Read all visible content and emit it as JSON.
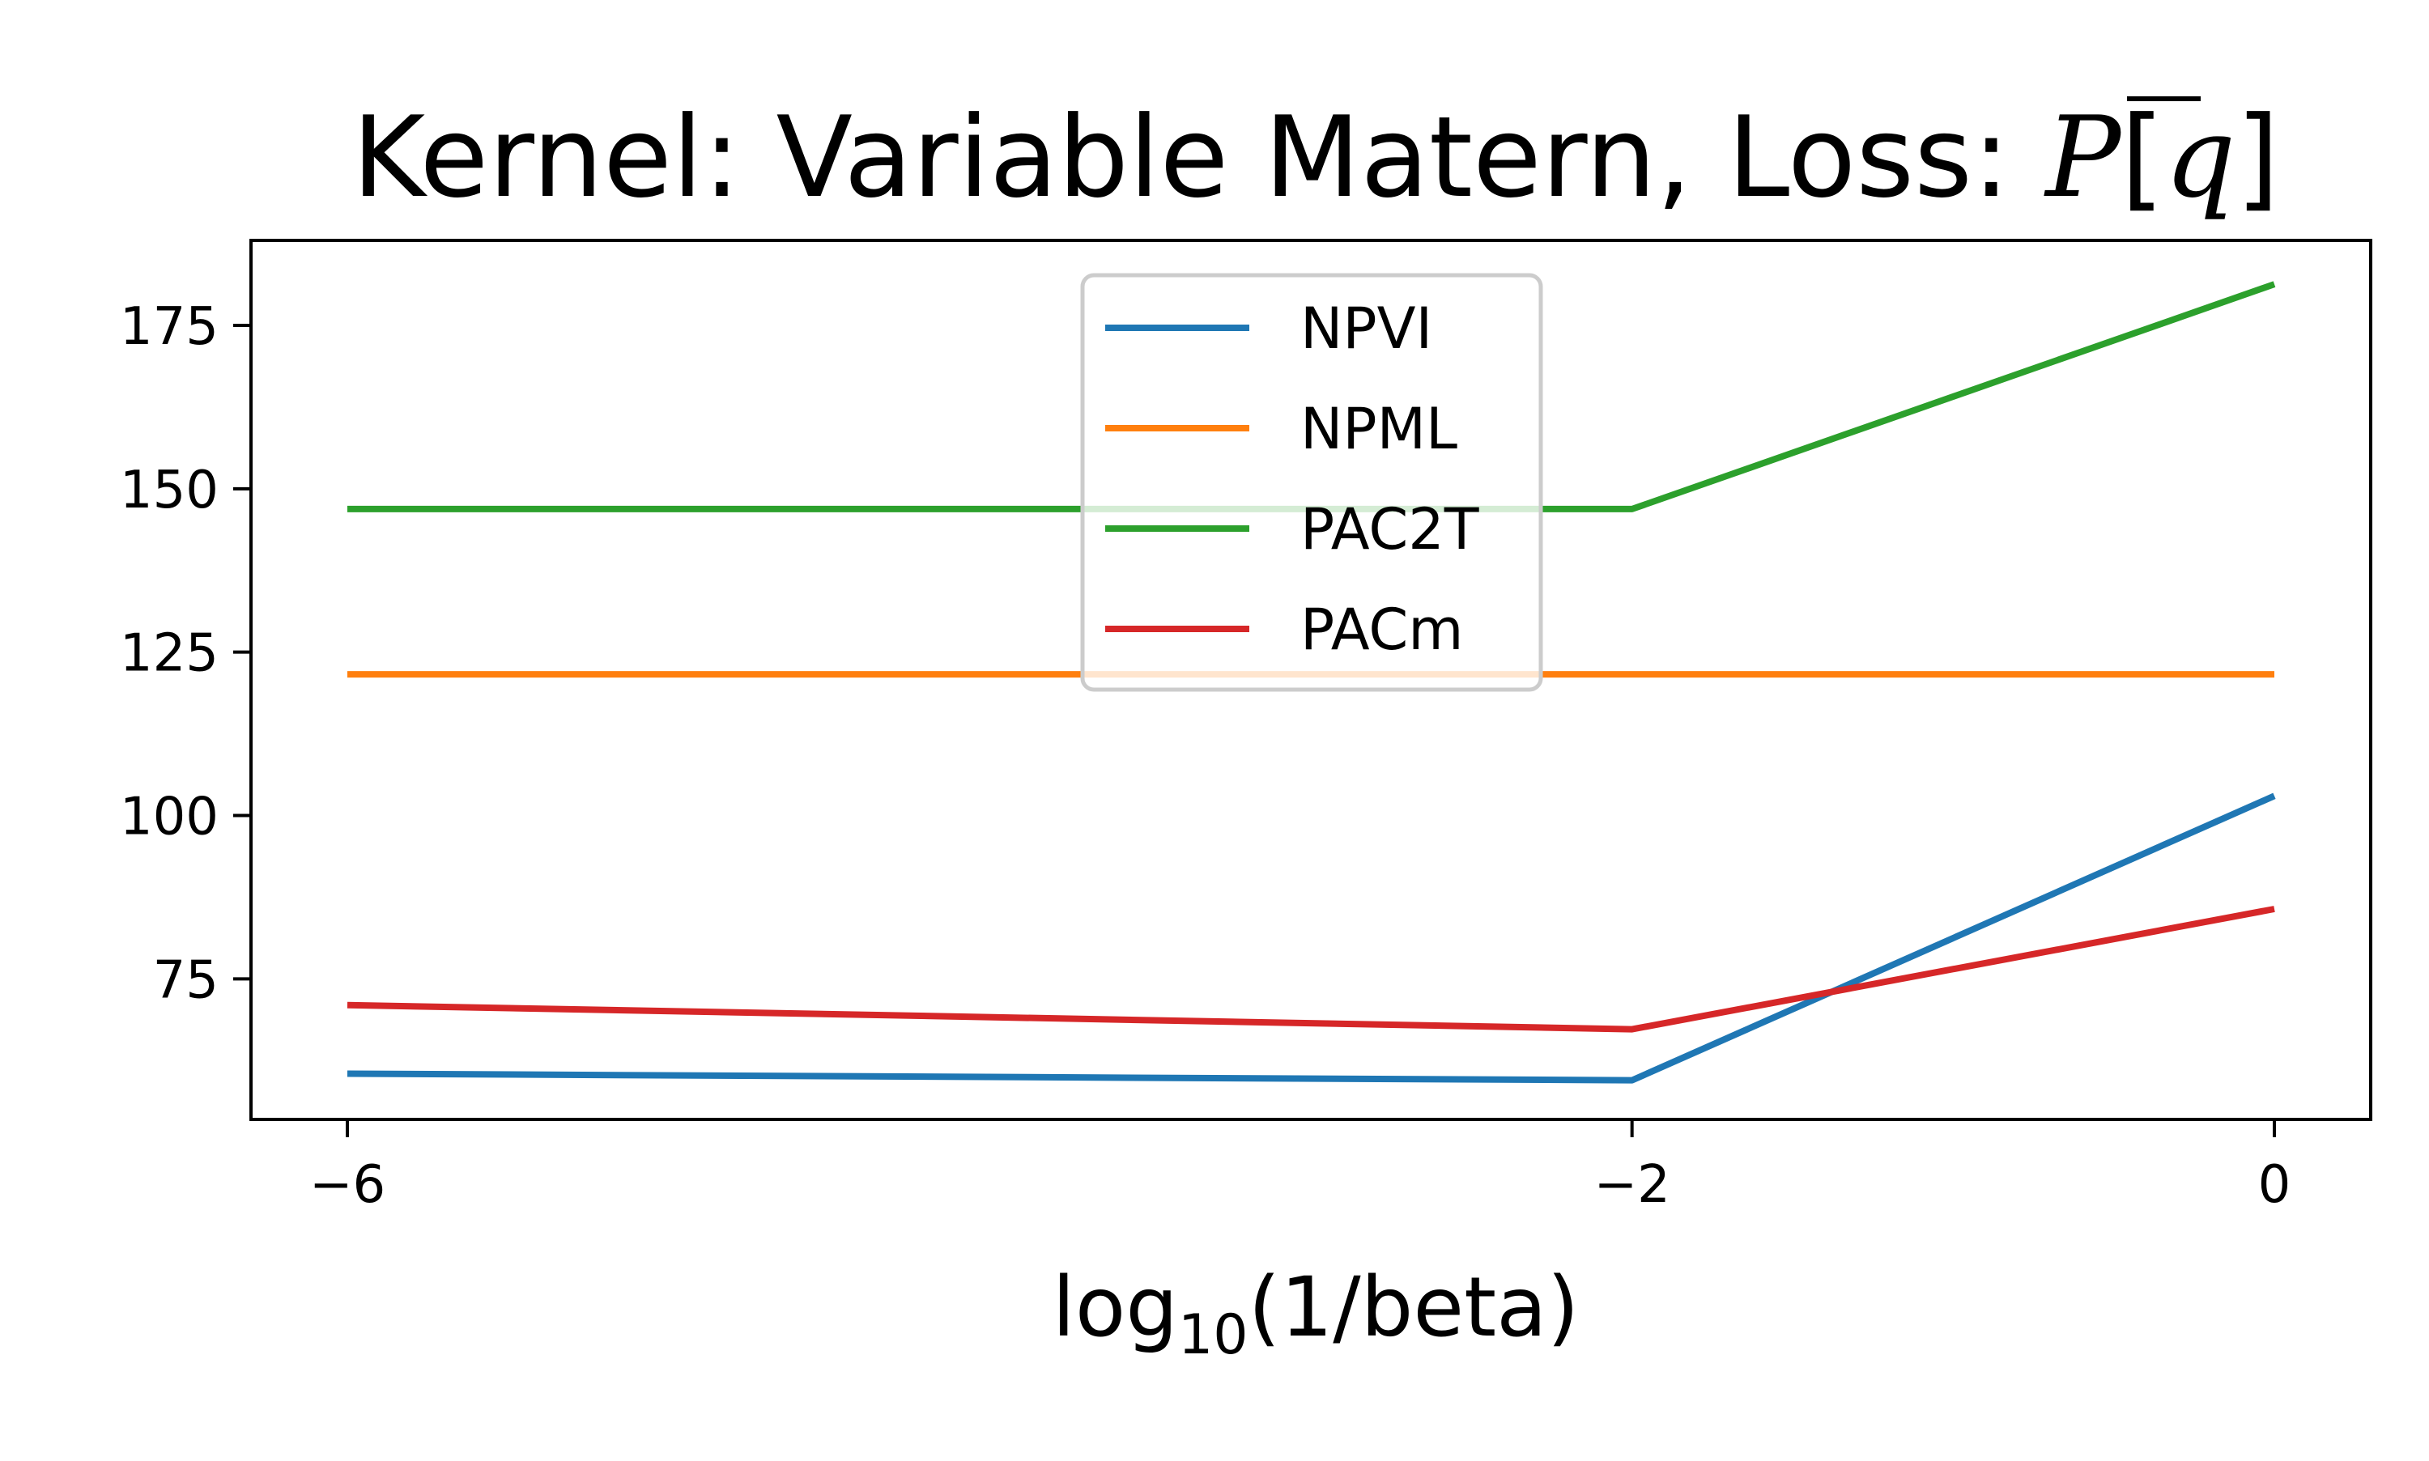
{
  "chart_data": {
    "type": "line",
    "title": {
      "prefix": "Kernel: Variable Matern, Loss: ",
      "symbol": "P",
      "bracket_open": "[",
      "variable": "q",
      "bracket_close": "]"
    },
    "xlabel": {
      "base": "log",
      "subscript": "10",
      "suffix": "(1/beta)"
    },
    "ylabel": "",
    "x": [
      -6,
      -2,
      0
    ],
    "x_ticks": [
      -6,
      -2,
      0
    ],
    "x_tick_labels": [
      "−6",
      "−2",
      "0"
    ],
    "y_ticks": [
      75,
      100,
      125,
      150,
      175
    ],
    "y_tick_labels": [
      "75",
      "100",
      "125",
      "150",
      "175"
    ],
    "xlim": [
      -6.3,
      0.3
    ],
    "ylim": [
      53.5,
      188
    ],
    "grid": false,
    "legend_position": "upper center",
    "series": [
      {
        "name": "NPVI",
        "color": "#1f77b4",
        "values": [
          60.5,
          59.5,
          103.0
        ]
      },
      {
        "name": "NPML",
        "color": "#ff7f0e",
        "values": [
          121.6,
          121.6,
          121.6
        ]
      },
      {
        "name": "PAC2T",
        "color": "#2ca02c",
        "values": [
          146.9,
          146.9,
          181.3
        ]
      },
      {
        "name": "PACm",
        "color": "#d62728",
        "values": [
          71.0,
          67.3,
          85.7
        ]
      }
    ]
  }
}
